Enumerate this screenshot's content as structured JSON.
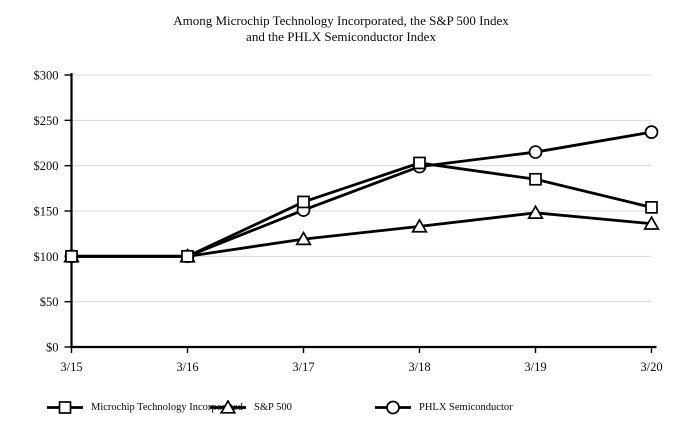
{
  "title": {
    "line1": "Among Microchip Technology Incorporated, the S&P 500 Index",
    "line2": "and the PHLX Semiconductor Index"
  },
  "colors": {
    "line": "#000000",
    "grid": "#d8d8d8",
    "background": "#ffffff",
    "text": "#0a0a0a",
    "marker_fill": "#ffffff"
  },
  "chart_data": {
    "type": "line",
    "title": "Among Microchip Technology Incorporated, the S&P 500 Index and the PHLX Semiconductor Index",
    "xlabel": "",
    "ylabel": "",
    "x_labels": [
      "3/15",
      "3/16",
      "3/17",
      "3/18",
      "3/19",
      "3/20"
    ],
    "y_ticks": [
      {
        "label": "$300",
        "value": 300
      },
      {
        "label": "$250",
        "value": 250
      },
      {
        "label": "$200",
        "value": 200
      },
      {
        "label": "$150",
        "value": 150
      },
      {
        "label": "$100",
        "value": 100
      },
      {
        "label": "$50",
        "value": 50
      },
      {
        "label": "$0",
        "value": 0
      }
    ],
    "ylim": [
      0,
      300
    ],
    "grid": true,
    "legend_position": "bottom",
    "series": [
      {
        "name": "Microchip Technology Incorporated",
        "marker": "square",
        "values": [
          100,
          100,
          160,
          203,
          185,
          154
        ]
      },
      {
        "name": "S&P 500",
        "marker": "triangle",
        "values": [
          100,
          100,
          119,
          133,
          148,
          136
        ]
      },
      {
        "name": "PHLX Semiconductor",
        "marker": "circle",
        "values": [
          100,
          100,
          151,
          199,
          215,
          237
        ]
      }
    ]
  }
}
